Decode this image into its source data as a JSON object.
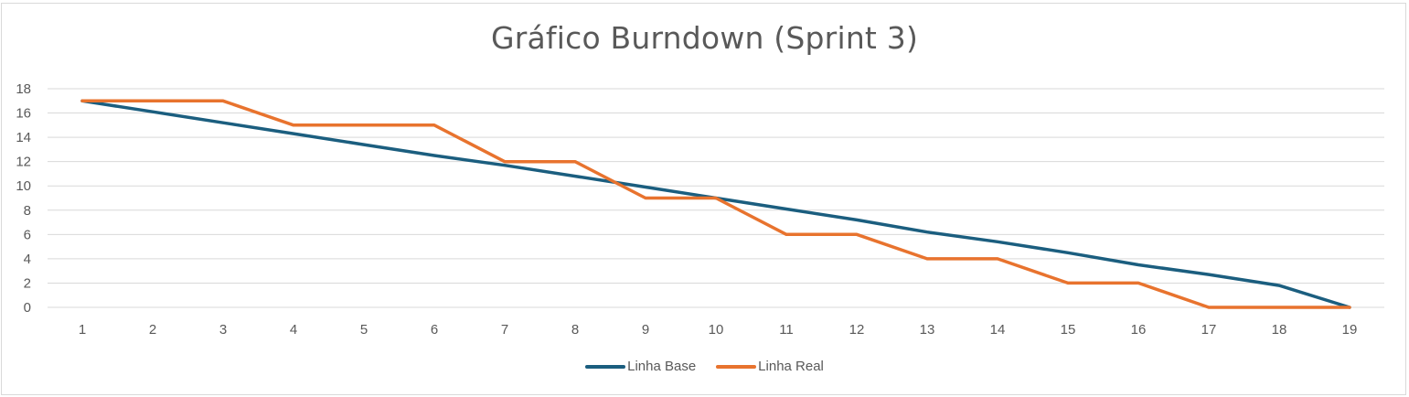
{
  "chart_data": {
    "type": "line",
    "title": "Gráfico Burndown (Sprint 3)",
    "xlabel": "",
    "ylabel": "",
    "x": [
      1,
      2,
      3,
      4,
      5,
      6,
      7,
      8,
      9,
      10,
      11,
      12,
      13,
      14,
      15,
      16,
      17,
      18,
      19
    ],
    "ylim": [
      0,
      18
    ],
    "yticks": [
      0,
      2,
      4,
      6,
      8,
      10,
      12,
      14,
      16,
      18
    ],
    "grid": true,
    "legend_position": "bottom",
    "series": [
      {
        "name": "Linha Base",
        "color": "#1b5e7f",
        "values": [
          17,
          16.1,
          15.2,
          14.3,
          13.4,
          12.5,
          11.7,
          10.8,
          9.9,
          9.0,
          8.1,
          7.2,
          6.2,
          5.4,
          4.5,
          3.5,
          2.7,
          1.8,
          0
        ]
      },
      {
        "name": "Linha Real",
        "color": "#e8732e",
        "values": [
          17,
          17,
          17,
          15,
          15,
          15,
          12,
          12,
          9,
          9,
          6,
          6,
          4,
          4,
          2,
          2,
          0,
          0,
          0
        ]
      }
    ]
  }
}
